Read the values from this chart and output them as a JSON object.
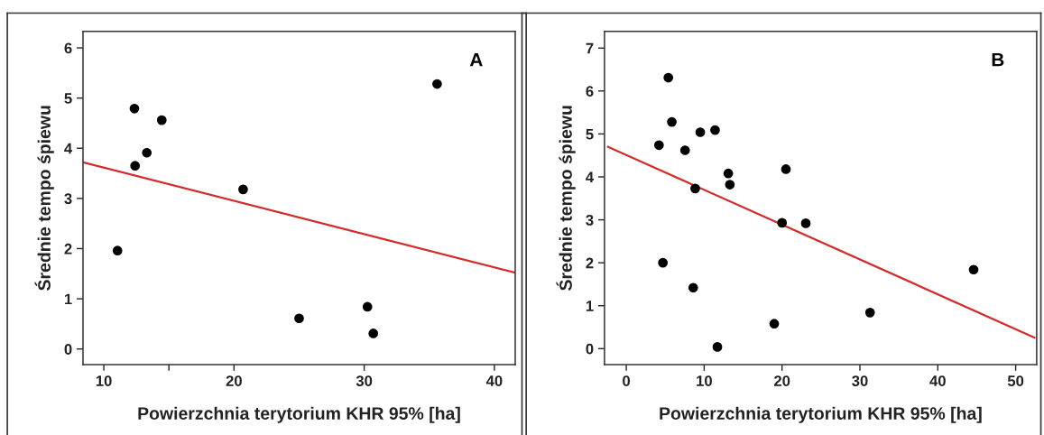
{
  "chart_data": [
    {
      "type": "scatter",
      "xlabel": "Powierzchnia terytorium KHR 95% [ha]",
      "ylabel": "Średnie tempo śpiewu",
      "annotations": [
        "A"
      ],
      "xlim": [
        8.4,
        41.6
      ],
      "ylim": [
        -0.31,
        6.33
      ],
      "xticks": [
        10,
        20,
        30,
        40,
        {
          "value": 15,
          "label": null
        }
      ],
      "yticks": [
        0,
        1,
        2,
        3,
        4,
        5,
        6
      ],
      "grid": false,
      "series": [
        {
          "marker": "circle",
          "color": "#000000",
          "x": [
            12.35,
            14.45,
            13.3,
            12.4,
            11.05,
            20.7,
            25.0,
            30.25,
            30.7,
            35.6
          ],
          "values": [
            4.79,
            4.56,
            3.91,
            3.65,
            1.96,
            3.18,
            0.61,
            0.84,
            0.31,
            5.28
          ]
        },
        {
          "type": "line",
          "color": "#d42a2a",
          "x": [
            8.4,
            41.6
          ],
          "values": [
            3.72,
            1.52
          ]
        }
      ]
    },
    {
      "type": "scatter",
      "xlabel": "Powierzchnia terytorium KHR 95% [ha]",
      "ylabel": "Średnie tempo śpiewu",
      "annotations": [
        "B"
      ],
      "xlim": [
        -2.8,
        52.7
      ],
      "ylim": [
        -0.37,
        7.39
      ],
      "xticks": [
        0,
        10,
        20,
        30,
        40,
        50
      ],
      "yticks": [
        0,
        1,
        2,
        3,
        4,
        5,
        6,
        7
      ],
      "grid": false,
      "series": [
        {
          "marker": "circle",
          "color": "#000000",
          "x": [
            5.4,
            5.85,
            4.2,
            7.55,
            9.5,
            11.4,
            8.85,
            13.1,
            13.3,
            20.5,
            20.0,
            23.05,
            4.7,
            8.6,
            19.0,
            11.7,
            31.3,
            44.6
          ],
          "values": [
            6.31,
            5.28,
            4.74,
            4.62,
            5.04,
            5.09,
            3.73,
            4.08,
            3.82,
            4.18,
            2.93,
            2.92,
            2.0,
            1.42,
            0.58,
            0.04,
            0.84,
            1.84
          ]
        },
        {
          "type": "line",
          "color": "#d42a2a",
          "x": [
            -2.35,
            52.4
          ],
          "values": [
            4.7,
            0.26
          ]
        }
      ]
    }
  ]
}
